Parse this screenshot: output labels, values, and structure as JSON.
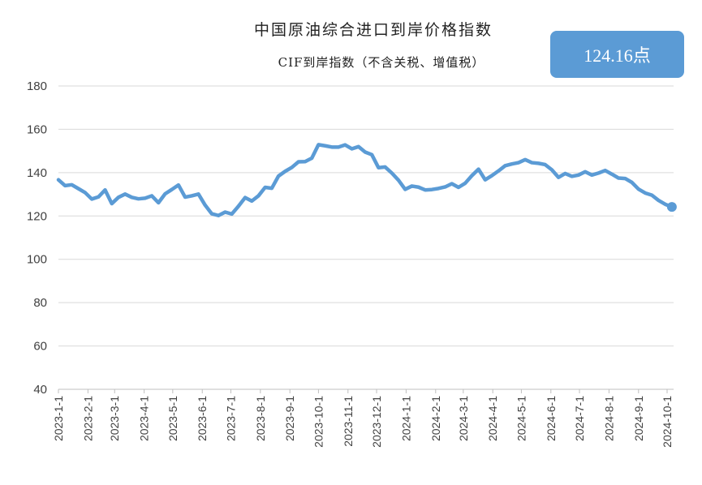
{
  "chart_data": {
    "type": "line",
    "title": "中国原油综合进口到岸价格指数",
    "subtitle": "CIF到岸指数（不含关税、增值税）",
    "annotation": "124.16点",
    "xlabel": "",
    "ylabel": "",
    "ylim": [
      40,
      180
    ],
    "yticks": [
      40,
      60,
      80,
      100,
      120,
      140,
      160,
      180
    ],
    "xlim": [
      "2023-01-01",
      "2024-10-10"
    ],
    "xtick_labels": [
      "2023-1-1",
      "2023-2-1",
      "2023-3-1",
      "2023-4-1",
      "2023-5-1",
      "2023-6-1",
      "2023-7-1",
      "2023-8-1",
      "2023-9-1",
      "2023-10-1",
      "2023-11-1",
      "2023-12-1",
      "2024-1-1",
      "2024-2-1",
      "2024-3-1",
      "2024-4-1",
      "2024-5-1",
      "2024-6-1",
      "2024-7-1",
      "2024-8-1",
      "2024-9-1",
      "2024-10-1"
    ],
    "grid": "horizontal",
    "legend": "none",
    "color": "#5b9bd5",
    "x": [
      "2023-01-01",
      "2023-01-08",
      "2023-01-15",
      "2023-01-22",
      "2023-01-29",
      "2023-02-05",
      "2023-02-12",
      "2023-02-19",
      "2023-02-26",
      "2023-03-05",
      "2023-03-12",
      "2023-03-19",
      "2023-03-26",
      "2023-04-02",
      "2023-04-09",
      "2023-04-16",
      "2023-04-23",
      "2023-04-30",
      "2023-05-07",
      "2023-05-14",
      "2023-05-21",
      "2023-05-28",
      "2023-06-04",
      "2023-06-11",
      "2023-06-18",
      "2023-06-25",
      "2023-07-02",
      "2023-07-09",
      "2023-07-16",
      "2023-07-23",
      "2023-07-30",
      "2023-08-06",
      "2023-08-13",
      "2023-08-20",
      "2023-08-27",
      "2023-09-03",
      "2023-09-10",
      "2023-09-17",
      "2023-09-24",
      "2023-10-01",
      "2023-10-08",
      "2023-10-15",
      "2023-10-22",
      "2023-10-29",
      "2023-11-05",
      "2023-11-12",
      "2023-11-19",
      "2023-11-26",
      "2023-12-03",
      "2023-12-10",
      "2023-12-17",
      "2023-12-24",
      "2023-12-31",
      "2024-01-07",
      "2024-01-14",
      "2024-01-21",
      "2024-01-28",
      "2024-02-04",
      "2024-02-11",
      "2024-02-18",
      "2024-02-25",
      "2024-03-03",
      "2024-03-10",
      "2024-03-17",
      "2024-03-24",
      "2024-03-31",
      "2024-04-07",
      "2024-04-14",
      "2024-04-21",
      "2024-04-28",
      "2024-05-05",
      "2024-05-12",
      "2024-05-19",
      "2024-05-26",
      "2024-06-02",
      "2024-06-09",
      "2024-06-16",
      "2024-06-23",
      "2024-06-30",
      "2024-07-07",
      "2024-07-14",
      "2024-07-21",
      "2024-07-28",
      "2024-08-04",
      "2024-08-11",
      "2024-08-18",
      "2024-08-25",
      "2024-09-01",
      "2024-09-08",
      "2024-09-15",
      "2024-09-22",
      "2024-09-29",
      "2024-10-06"
    ],
    "values": [
      136.7,
      134.0,
      134.4,
      132.6,
      130.8,
      127.8,
      128.8,
      132.0,
      125.7,
      128.6,
      130.1,
      128.6,
      127.9,
      128.2,
      129.3,
      126.1,
      130.2,
      132.2,
      134.3,
      128.7,
      129.3,
      130.1,
      125.0,
      121.0,
      120.2,
      121.8,
      120.9,
      124.5,
      128.5,
      126.9,
      129.3,
      133.2,
      132.8,
      138.4,
      140.6,
      142.4,
      145.0,
      145.1,
      146.7,
      152.9,
      152.4,
      151.8,
      151.8,
      152.8,
      151.0,
      152.0,
      149.5,
      148.3,
      142.3,
      142.6,
      139.8,
      136.5,
      132.3,
      133.8,
      133.3,
      132.0,
      132.2,
      132.7,
      133.4,
      134.9,
      133.2,
      135.1,
      138.6,
      141.6,
      136.7,
      138.6,
      140.8,
      143.2,
      144.0,
      144.6,
      146.0,
      144.6,
      144.3,
      143.7,
      141.3,
      137.8,
      139.6,
      138.3,
      138.9,
      140.4,
      138.9,
      139.8,
      141.0,
      139.3,
      137.5,
      137.3,
      135.5,
      132.4,
      130.6,
      129.6,
      127.2,
      125.4,
      124.16
    ]
  }
}
